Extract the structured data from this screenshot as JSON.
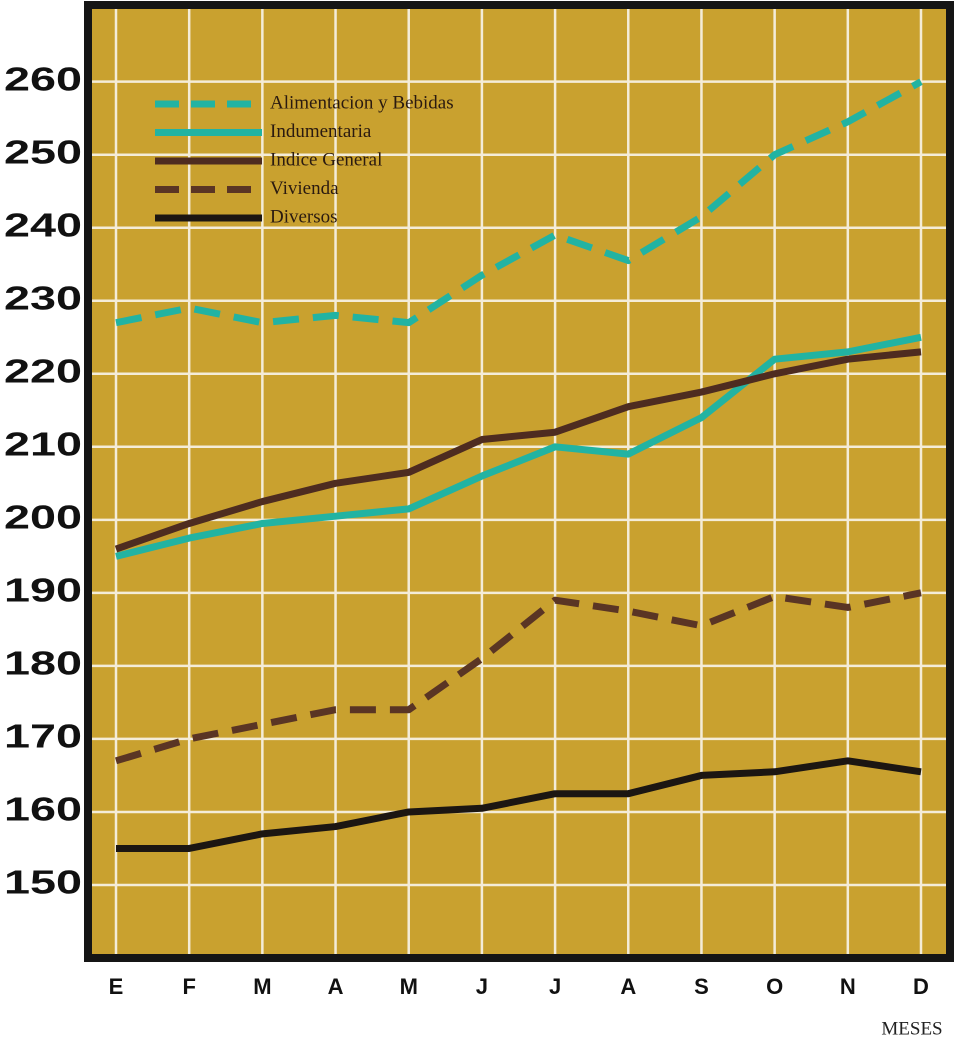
{
  "chart_data": {
    "type": "line",
    "x_label": "MESES",
    "categories": [
      "E",
      "F",
      "M",
      "A",
      "M",
      "J",
      "J",
      "A",
      "S",
      "O",
      "N",
      "D"
    ],
    "series": [
      {
        "name": "Alimentacion y Bebidas",
        "color": "#22b3a2",
        "dashed": true,
        "values": [
          227,
          229,
          227,
          228,
          227,
          233.5,
          239,
          235.5,
          241.5,
          250,
          254.5,
          260
        ]
      },
      {
        "name": "Indumentaria",
        "color": "#22b3a2",
        "dashed": false,
        "values": [
          195,
          197.5,
          199.5,
          200.5,
          201.5,
          206,
          210,
          209,
          214,
          222,
          223,
          225
        ]
      },
      {
        "name": "Indice General",
        "color": "#4e2c20",
        "dashed": false,
        "values": [
          196,
          199.5,
          202.5,
          205,
          206.5,
          211,
          212,
          215.5,
          217.5,
          220,
          222,
          223
        ]
      },
      {
        "name": "Vivienda",
        "color": "#5a3524",
        "dashed": true,
        "values": [
          167,
          170,
          172,
          174,
          174,
          181,
          189,
          187.5,
          185.5,
          189.5,
          188,
          190
        ]
      },
      {
        "name": "Diversos",
        "color": "#1c1612",
        "dashed": false,
        "values": [
          155,
          155,
          157,
          158,
          160,
          160.5,
          162.5,
          162.5,
          165,
          165.5,
          167,
          165.5
        ]
      }
    ],
    "ylim": [
      140,
      270.5
    ],
    "yticks": [
      150,
      160,
      170,
      180,
      190,
      200,
      210,
      220,
      230,
      240,
      250,
      260
    ],
    "grid": true,
    "legend": "upper left"
  }
}
